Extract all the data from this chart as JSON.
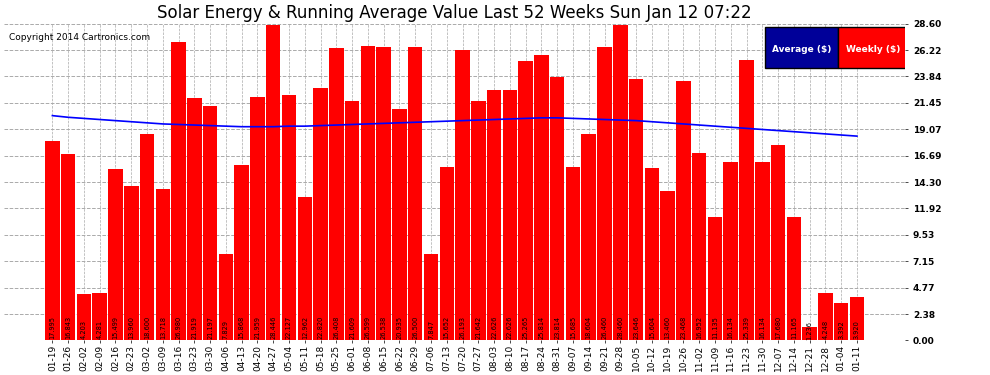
{
  "title": "Solar Energy & Running Average Value Last 52 Weeks Sun Jan 12 07:22",
  "copyright": "Copyright 2014 Cartronics.com",
  "bar_color": "#FF0000",
  "avg_line_color": "#0000FF",
  "background_color": "#FFFFFF",
  "plot_bg_color": "#FFFFFF",
  "grid_color": "#AAAAAA",
  "ylabel_right_values": [
    28.6,
    26.22,
    23.84,
    21.45,
    19.07,
    16.69,
    14.3,
    11.92,
    9.53,
    7.15,
    4.77,
    2.38,
    0.0
  ],
  "legend_avg_color": "#000099",
  "legend_weekly_color": "#FF0000",
  "categories": [
    "01-19",
    "01-26",
    "02-02",
    "02-09",
    "02-16",
    "02-23",
    "03-02",
    "03-09",
    "03-16",
    "03-23",
    "03-30",
    "04-06",
    "04-13",
    "04-20",
    "04-27",
    "05-04",
    "05-11",
    "05-18",
    "05-25",
    "06-01",
    "06-08",
    "06-15",
    "06-22",
    "06-29",
    "07-06",
    "07-13",
    "07-20",
    "07-27",
    "08-03",
    "08-10",
    "08-17",
    "08-24",
    "08-31",
    "09-07",
    "09-14",
    "09-21",
    "09-28",
    "10-05",
    "10-12",
    "10-19",
    "10-26",
    "11-02",
    "11-09",
    "11-16",
    "11-23",
    "11-30",
    "12-07",
    "12-14",
    "12-21",
    "12-28",
    "01-04",
    "01-11"
  ],
  "weekly_values": [
    17.995,
    16.843,
    4.203,
    4.281,
    15.499,
    13.96,
    18.6,
    13.718,
    26.98,
    21.919,
    21.197,
    7.829,
    15.868,
    21.959,
    28.446,
    22.127,
    12.962,
    22.82,
    26.408,
    21.609,
    26.599,
    26.538,
    20.935,
    26.5,
    7.847,
    15.652,
    26.193,
    21.642,
    22.626,
    22.626,
    25.265,
    25.814,
    23.814,
    15.685,
    18.604,
    26.46,
    28.46,
    23.646,
    15.604,
    13.46,
    23.468,
    16.952,
    11.135,
    16.134,
    25.339,
    16.134,
    17.68,
    11.165,
    1.236,
    4.248,
    3.392,
    3.92
  ],
  "avg_values": [
    20.3,
    20.15,
    20.05,
    19.95,
    19.85,
    19.75,
    19.65,
    19.55,
    19.5,
    19.45,
    19.4,
    19.35,
    19.3,
    19.3,
    19.3,
    19.35,
    19.35,
    19.4,
    19.45,
    19.5,
    19.55,
    19.6,
    19.65,
    19.7,
    19.75,
    19.8,
    19.85,
    19.9,
    19.95,
    20.0,
    20.05,
    20.1,
    20.1,
    20.05,
    20.0,
    19.95,
    19.9,
    19.85,
    19.75,
    19.65,
    19.55,
    19.45,
    19.35,
    19.25,
    19.15,
    19.05,
    18.95,
    18.85,
    18.75,
    18.65,
    18.55,
    18.45
  ],
  "ymax": 28.6,
  "ymin": 0.0,
  "title_fontsize": 12,
  "tick_fontsize": 6.5,
  "value_fontsize": 4.8,
  "figwidth": 9.9,
  "figheight": 3.75,
  "dpi": 100
}
